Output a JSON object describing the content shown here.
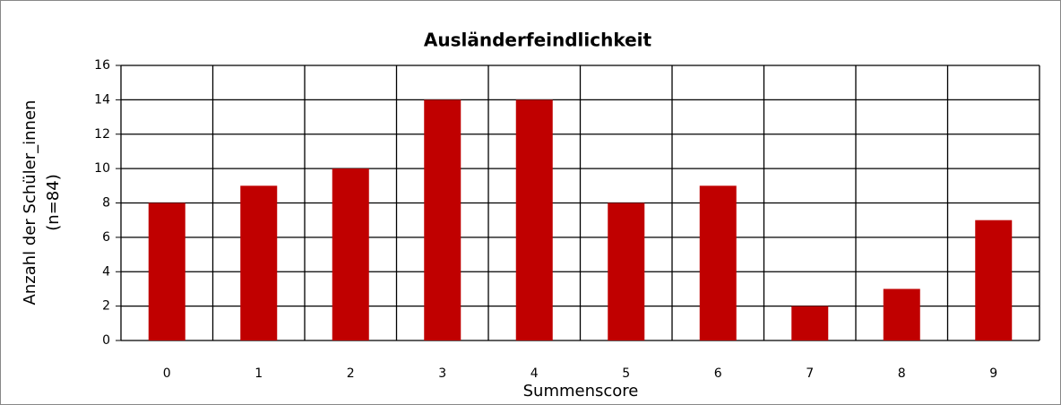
{
  "chart_data": {
    "type": "bar",
    "title": "Ausländerfeindlichkeit",
    "x_label": "Summenscore",
    "y_label": [
      "Anzahl der Schüler_innen",
      "(n=84)"
    ],
    "categories": [
      "0",
      "1",
      "2",
      "3",
      "4",
      "5",
      "6",
      "7",
      "8",
      "9"
    ],
    "values": [
      8,
      9,
      10,
      14,
      14,
      8,
      9,
      2,
      3,
      7
    ],
    "color": "#c00000",
    "ylim": [
      0,
      16
    ],
    "yticks": [
      0,
      2,
      4,
      6,
      8,
      10,
      12,
      14,
      16
    ],
    "grid": true
  }
}
